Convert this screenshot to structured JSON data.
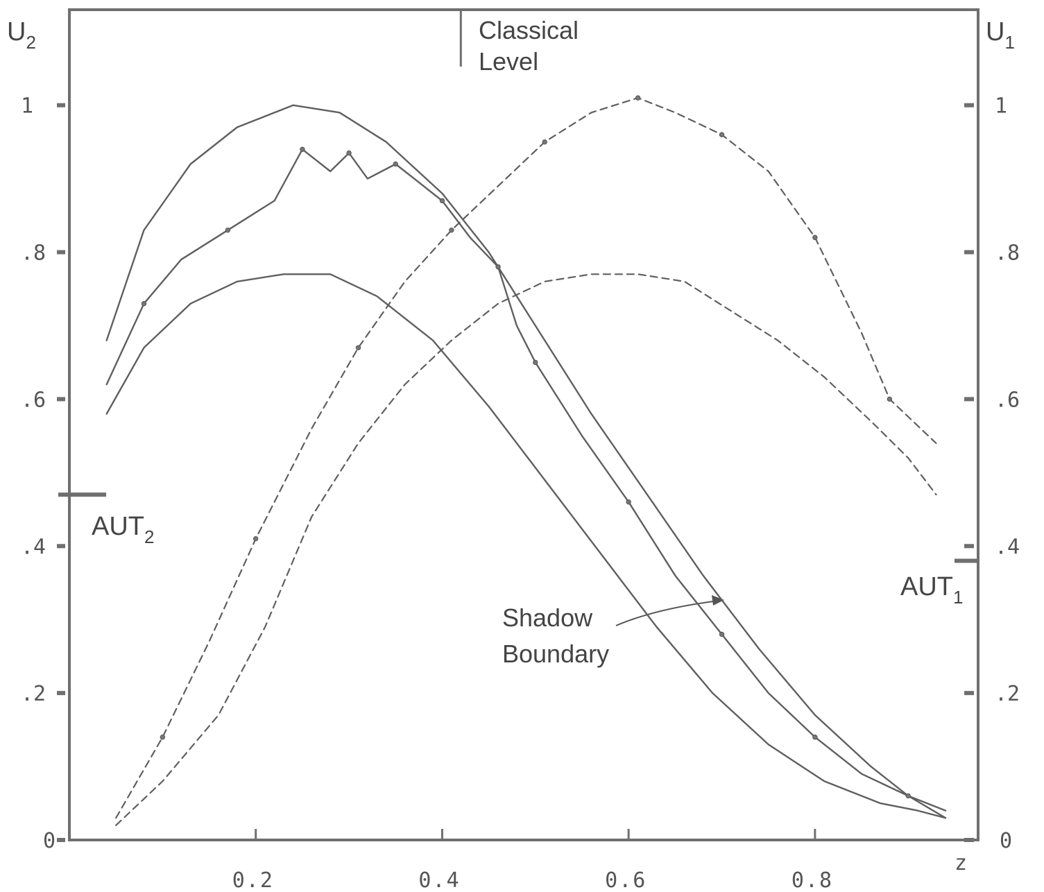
{
  "chart_data": {
    "type": "line",
    "title": "",
    "xlabel": "z",
    "ylabel_left": "U2",
    "ylabel_right": "U1",
    "xlim": [
      0.0,
      0.975
    ],
    "ylim": [
      0.0,
      1.13
    ],
    "x_ticks": [
      0.2,
      0.4,
      0.6,
      0.8
    ],
    "x_tick_labels": [
      "0.2",
      "0.4",
      "0.6",
      "0.8"
    ],
    "left_y_ticks": [
      0.0,
      0.2,
      0.4,
      0.6,
      0.8,
      1.0
    ],
    "left_y_tick_labels": [
      "0",
      ".2",
      ".4",
      ".6",
      ".8",
      "1"
    ],
    "right_y_ticks": [
      0.0,
      0.2,
      0.4,
      0.6,
      0.8,
      1.0
    ],
    "right_y_tick_labels": [
      "0",
      ".2",
      ".4",
      ".6",
      ".8",
      "1"
    ],
    "grid": false,
    "legend": "none",
    "series": [
      {
        "style": "solid",
        "x": [
          0.04,
          0.08,
          0.13,
          0.18,
          0.24,
          0.29,
          0.34,
          0.4,
          0.45,
          0.5,
          0.56,
          0.62,
          0.68,
          0.74,
          0.8,
          0.86,
          0.9,
          0.94
        ],
        "y": [
          0.68,
          0.83,
          0.92,
          0.97,
          1.0,
          0.99,
          0.95,
          0.88,
          0.8,
          0.7,
          0.58,
          0.47,
          0.36,
          0.26,
          0.17,
          0.1,
          0.06,
          0.03
        ]
      },
      {
        "style": "solid",
        "x": [
          0.04,
          0.08,
          0.12,
          0.17,
          0.22,
          0.25,
          0.28,
          0.3,
          0.32,
          0.35,
          0.37,
          0.4,
          0.43,
          0.46,
          0.48,
          0.5,
          0.55,
          0.6,
          0.65,
          0.7,
          0.75,
          0.8,
          0.85,
          0.9,
          0.94
        ],
        "y": [
          0.62,
          0.73,
          0.79,
          0.83,
          0.87,
          0.94,
          0.91,
          0.935,
          0.9,
          0.92,
          0.9,
          0.87,
          0.82,
          0.78,
          0.7,
          0.65,
          0.55,
          0.46,
          0.36,
          0.28,
          0.2,
          0.14,
          0.09,
          0.06,
          0.04
        ]
      },
      {
        "style": "solid",
        "x": [
          0.04,
          0.08,
          0.13,
          0.18,
          0.23,
          0.28,
          0.33,
          0.39,
          0.45,
          0.51,
          0.57,
          0.63,
          0.69,
          0.75,
          0.81,
          0.87,
          0.91,
          0.94
        ],
        "y": [
          0.58,
          0.67,
          0.73,
          0.76,
          0.77,
          0.77,
          0.74,
          0.68,
          0.59,
          0.49,
          0.39,
          0.29,
          0.2,
          0.13,
          0.08,
          0.05,
          0.04,
          0.03
        ]
      },
      {
        "style": "dashed",
        "x": [
          0.05,
          0.1,
          0.15,
          0.2,
          0.26,
          0.31,
          0.36,
          0.41,
          0.46,
          0.51,
          0.56,
          0.61,
          0.65,
          0.7,
          0.75,
          0.8,
          0.85,
          0.88,
          0.93
        ],
        "y": [
          0.03,
          0.14,
          0.27,
          0.41,
          0.56,
          0.67,
          0.76,
          0.83,
          0.89,
          0.95,
          0.99,
          1.01,
          0.99,
          0.96,
          0.91,
          0.82,
          0.69,
          0.6,
          0.54
        ]
      },
      {
        "style": "dashed",
        "x": [
          0.05,
          0.1,
          0.16,
          0.21,
          0.26,
          0.31,
          0.36,
          0.41,
          0.46,
          0.51,
          0.56,
          0.61,
          0.66,
          0.71,
          0.76,
          0.81,
          0.86,
          0.9,
          0.93
        ],
        "y": [
          0.02,
          0.08,
          0.17,
          0.29,
          0.44,
          0.54,
          0.62,
          0.68,
          0.73,
          0.76,
          0.77,
          0.77,
          0.76,
          0.72,
          0.68,
          0.63,
          0.57,
          0.52,
          0.47
        ]
      }
    ],
    "reference_marks": [
      {
        "label": "AUT2",
        "axis": "left",
        "value": 0.47
      },
      {
        "label": "AUT1",
        "axis": "right",
        "value": 0.38
      },
      {
        "label": "Classical Level",
        "axis": "top",
        "value": 0.42
      }
    ],
    "annotations": [
      {
        "text": "Classical",
        "line": 1
      },
      {
        "text": "Level",
        "line": 2
      },
      {
        "text": "Shadow",
        "line": 1
      },
      {
        "text": "Boundary",
        "line": 2
      }
    ]
  },
  "labels": {
    "u2_main": "U",
    "u2_sub": "2",
    "u1_main": "U",
    "u1_sub": "1",
    "aut2_main": "AUT",
    "aut2_sub": "2",
    "aut1_main": "AUT",
    "aut1_sub": "1",
    "z_axis": "z",
    "classical": "Classical",
    "level": "Level",
    "shadow": "Shadow",
    "boundary": "Boundary"
  }
}
